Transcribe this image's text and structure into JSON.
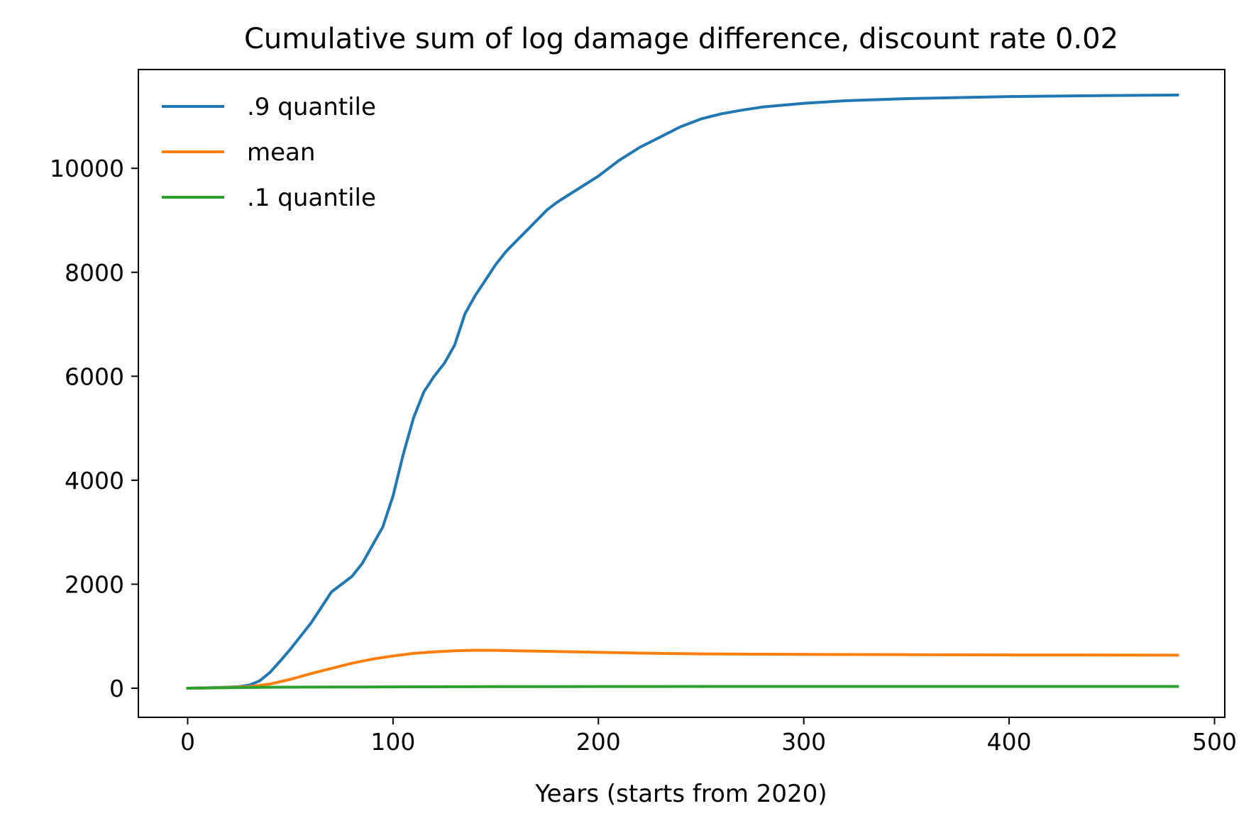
{
  "chart_data": {
    "type": "line",
    "title": "Cumulative sum of log damage difference, discount rate 0.02",
    "xlabel": "Years (starts from 2020)",
    "ylabel": "",
    "xlim": [
      -24,
      505
    ],
    "ylim": [
      -560,
      11900
    ],
    "xticks": [
      0,
      100,
      200,
      300,
      400,
      500
    ],
    "xtick_labels": [
      "0",
      "100",
      "200",
      "300",
      "400",
      "500"
    ],
    "yticks": [
      0,
      2000,
      4000,
      6000,
      8000,
      10000
    ],
    "ytick_labels": [
      "0",
      "2000",
      "4000",
      "6000",
      "8000",
      "10000"
    ],
    "grid": false,
    "legend_position": "top-left",
    "series": [
      {
        "name": ".9 quantile",
        "color": "#1f77b4",
        "points": [
          [
            0,
            0
          ],
          [
            10,
            8
          ],
          [
            20,
            20
          ],
          [
            25,
            30
          ],
          [
            30,
            60
          ],
          [
            35,
            140
          ],
          [
            40,
            300
          ],
          [
            45,
            520
          ],
          [
            50,
            750
          ],
          [
            55,
            1000
          ],
          [
            60,
            1250
          ],
          [
            65,
            1550
          ],
          [
            70,
            1850
          ],
          [
            75,
            2000
          ],
          [
            80,
            2150
          ],
          [
            85,
            2400
          ],
          [
            90,
            2750
          ],
          [
            95,
            3100
          ],
          [
            100,
            3700
          ],
          [
            105,
            4500
          ],
          [
            110,
            5200
          ],
          [
            115,
            5700
          ],
          [
            120,
            6000
          ],
          [
            125,
            6250
          ],
          [
            130,
            6600
          ],
          [
            135,
            7200
          ],
          [
            140,
            7550
          ],
          [
            145,
            7850
          ],
          [
            150,
            8150
          ],
          [
            155,
            8400
          ],
          [
            160,
            8600
          ],
          [
            165,
            8800
          ],
          [
            170,
            9000
          ],
          [
            175,
            9200
          ],
          [
            180,
            9350
          ],
          [
            190,
            9600
          ],
          [
            200,
            9850
          ],
          [
            210,
            10150
          ],
          [
            220,
            10400
          ],
          [
            230,
            10600
          ],
          [
            240,
            10800
          ],
          [
            250,
            10950
          ],
          [
            260,
            11050
          ],
          [
            270,
            11120
          ],
          [
            280,
            11180
          ],
          [
            300,
            11250
          ],
          [
            320,
            11300
          ],
          [
            350,
            11340
          ],
          [
            400,
            11380
          ],
          [
            450,
            11400
          ],
          [
            482,
            11410
          ]
        ]
      },
      {
        "name": "mean",
        "color": "#ff7f0e",
        "points": [
          [
            0,
            0
          ],
          [
            10,
            5
          ],
          [
            20,
            15
          ],
          [
            30,
            30
          ],
          [
            40,
            80
          ],
          [
            50,
            170
          ],
          [
            60,
            280
          ],
          [
            70,
            380
          ],
          [
            80,
            480
          ],
          [
            90,
            560
          ],
          [
            100,
            620
          ],
          [
            110,
            670
          ],
          [
            120,
            700
          ],
          [
            130,
            720
          ],
          [
            140,
            730
          ],
          [
            150,
            728
          ],
          [
            160,
            720
          ],
          [
            170,
            712
          ],
          [
            180,
            705
          ],
          [
            200,
            690
          ],
          [
            220,
            675
          ],
          [
            250,
            660
          ],
          [
            300,
            650
          ],
          [
            350,
            645
          ],
          [
            400,
            640
          ],
          [
            450,
            638
          ],
          [
            482,
            636
          ]
        ]
      },
      {
        "name": ".1 quantile",
        "color": "#2ca02c",
        "points": [
          [
            0,
            0
          ],
          [
            10,
            5
          ],
          [
            20,
            10
          ],
          [
            40,
            18
          ],
          [
            60,
            22
          ],
          [
            100,
            26
          ],
          [
            150,
            30
          ],
          [
            200,
            32
          ],
          [
            300,
            33
          ],
          [
            400,
            34
          ],
          [
            482,
            34
          ]
        ]
      }
    ]
  }
}
